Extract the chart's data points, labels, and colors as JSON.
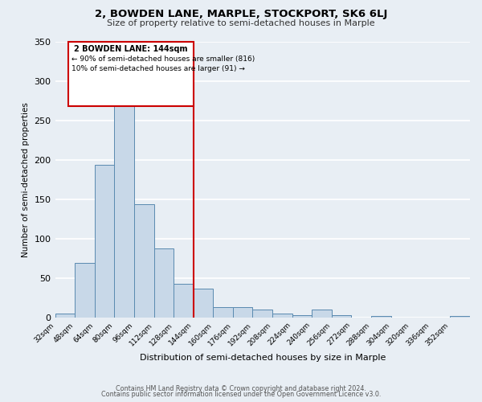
{
  "title": "2, BOWDEN LANE, MARPLE, STOCKPORT, SK6 6LJ",
  "subtitle": "Size of property relative to semi-detached houses in Marple",
  "xlabel": "Distribution of semi-detached houses by size in Marple",
  "ylabel": "Number of semi-detached properties",
  "bin_labels": [
    "32sqm",
    "48sqm",
    "64sqm",
    "80sqm",
    "96sqm",
    "112sqm",
    "128sqm",
    "144sqm",
    "160sqm",
    "176sqm",
    "192sqm",
    "208sqm",
    "224sqm",
    "240sqm",
    "256sqm",
    "272sqm",
    "288sqm",
    "304sqm",
    "320sqm",
    "336sqm",
    "352sqm"
  ],
  "bin_edges": [
    32,
    48,
    64,
    80,
    96,
    112,
    128,
    144,
    160,
    176,
    192,
    208,
    224,
    240,
    256,
    272,
    288,
    304,
    320,
    336,
    352,
    368
  ],
  "bar_values": [
    5,
    69,
    193,
    284,
    144,
    87,
    43,
    36,
    13,
    13,
    10,
    5,
    3,
    10,
    3,
    0,
    2,
    0,
    0,
    0,
    2
  ],
  "bar_color": "#c8d8e8",
  "bar_edge_color": "#5a8ab0",
  "property_size": 144,
  "vline_color": "#cc0000",
  "annotation_title": "2 BOWDEN LANE: 144sqm",
  "annotation_line1": "← 90% of semi-detached houses are smaller (816)",
  "annotation_line2": "10% of semi-detached houses are larger (91) →",
  "annotation_box_color": "#cc0000",
  "ylim": [
    0,
    350
  ],
  "yticks": [
    0,
    50,
    100,
    150,
    200,
    250,
    300,
    350
  ],
  "background_color": "#e8eef4",
  "grid_color": "#ffffff",
  "footer_line1": "Contains HM Land Registry data © Crown copyright and database right 2024.",
  "footer_line2": "Contains public sector information licensed under the Open Government Licence v3.0."
}
